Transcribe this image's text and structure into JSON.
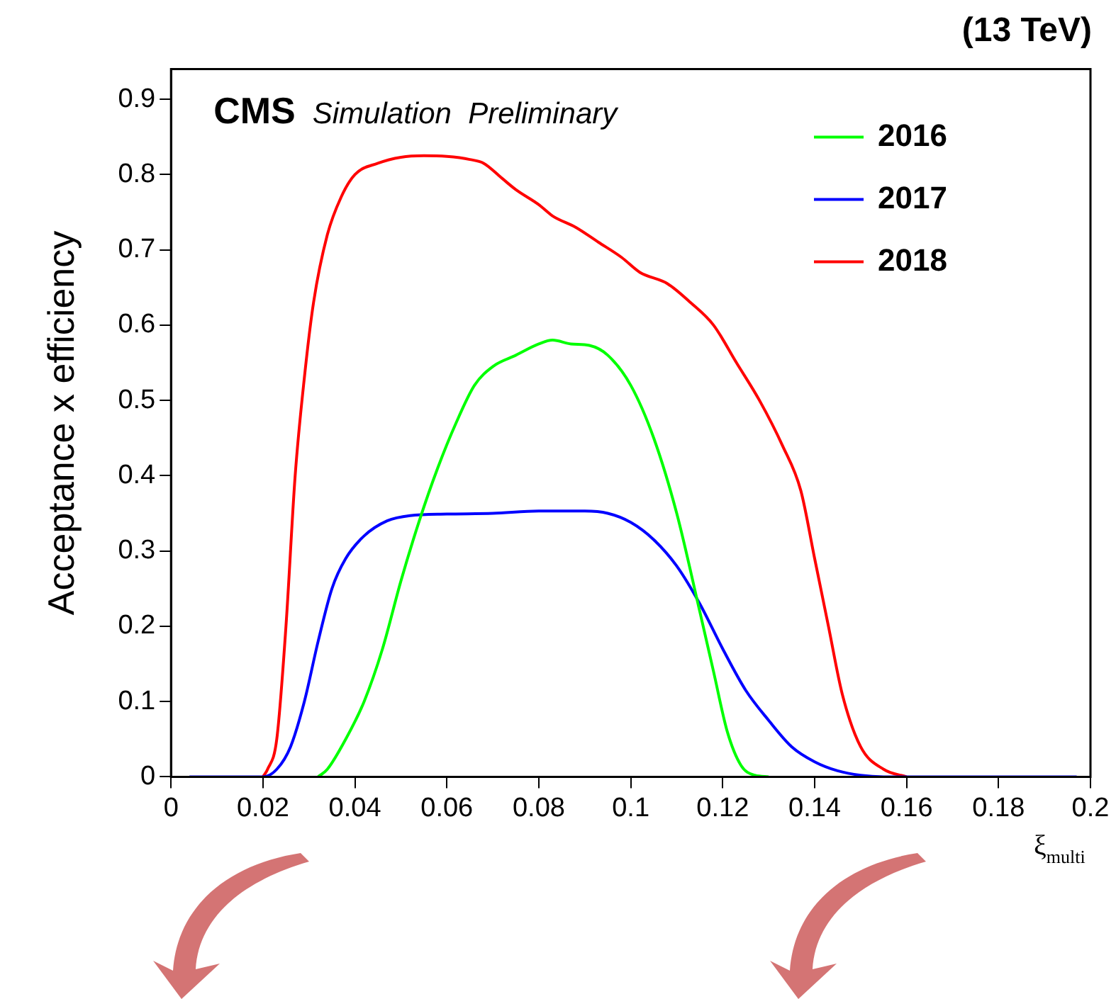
{
  "chart_data": {
    "type": "line",
    "title": "(13 TeV)",
    "ylabel": "Acceptance x efficiency",
    "xlabel": "ξ$_{multi}$",
    "annotations": [
      "CMS",
      "Simulation  Preliminary"
    ],
    "xlim": [
      0,
      0.2
    ],
    "xticks": [
      0,
      0.02,
      0.04,
      0.06,
      0.08,
      0.1,
      0.12,
      0.14,
      0.16,
      0.18,
      0.2
    ],
    "ylim": [
      0,
      0.94
    ],
    "yticks": [
      0,
      0.1,
      0.2,
      0.3,
      0.4,
      0.5,
      0.6,
      0.7,
      0.8,
      0.9
    ],
    "grid": false,
    "legend": "top right",
    "marker": "none",
    "line_style": "solid",
    "series": [
      {
        "name": "2016",
        "color": "#00ff00",
        "x": [
          0.032,
          0.034,
          0.038,
          0.042,
          0.046,
          0.05,
          0.054,
          0.058,
          0.062,
          0.066,
          0.07,
          0.075,
          0.08,
          0.083,
          0.087,
          0.091,
          0.095,
          0.1,
          0.105,
          0.11,
          0.115,
          0.118,
          0.121,
          0.124,
          0.127,
          0.13
        ],
        "values": [
          0,
          0.01,
          0.05,
          0.1,
          0.17,
          0.26,
          0.34,
          0.41,
          0.47,
          0.52,
          0.545,
          0.56,
          0.575,
          0.58,
          0.575,
          0.573,
          0.56,
          0.52,
          0.45,
          0.35,
          0.22,
          0.14,
          0.06,
          0.015,
          0.002,
          0
        ]
      },
      {
        "name": "2017",
        "color": "#0000ff",
        "x": [
          0.004,
          0.02,
          0.023,
          0.026,
          0.029,
          0.032,
          0.035,
          0.038,
          0.042,
          0.047,
          0.052,
          0.06,
          0.07,
          0.08,
          0.09,
          0.095,
          0.1,
          0.105,
          0.11,
          0.115,
          0.12,
          0.125,
          0.13,
          0.135,
          0.14,
          0.145,
          0.15,
          0.155,
          0.197
        ],
        "values": [
          0,
          0,
          0.01,
          0.04,
          0.1,
          0.18,
          0.25,
          0.29,
          0.32,
          0.34,
          0.347,
          0.349,
          0.35,
          0.353,
          0.353,
          0.35,
          0.338,
          0.315,
          0.28,
          0.23,
          0.17,
          0.115,
          0.075,
          0.04,
          0.02,
          0.008,
          0.002,
          0,
          0
        ]
      },
      {
        "name": "2018",
        "color": "#ff0000",
        "x": [
          0.02,
          0.021,
          0.023,
          0.025,
          0.027,
          0.029,
          0.031,
          0.034,
          0.037,
          0.04,
          0.045,
          0.05,
          0.055,
          0.06,
          0.065,
          0.068,
          0.072,
          0.075,
          0.08,
          0.083,
          0.088,
          0.093,
          0.098,
          0.102,
          0.108,
          0.113,
          0.118,
          0.123,
          0.128,
          0.133,
          0.137,
          0.14,
          0.143,
          0.146,
          0.15,
          0.155,
          0.16
        ],
        "values": [
          0,
          0.01,
          0.05,
          0.2,
          0.4,
          0.53,
          0.63,
          0.72,
          0.77,
          0.8,
          0.815,
          0.823,
          0.825,
          0.824,
          0.82,
          0.815,
          0.795,
          0.78,
          0.76,
          0.745,
          0.73,
          0.71,
          0.69,
          0.67,
          0.655,
          0.63,
          0.6,
          0.55,
          0.5,
          0.44,
          0.38,
          0.29,
          0.2,
          0.11,
          0.04,
          0.01,
          0
        ]
      }
    ]
  }
}
